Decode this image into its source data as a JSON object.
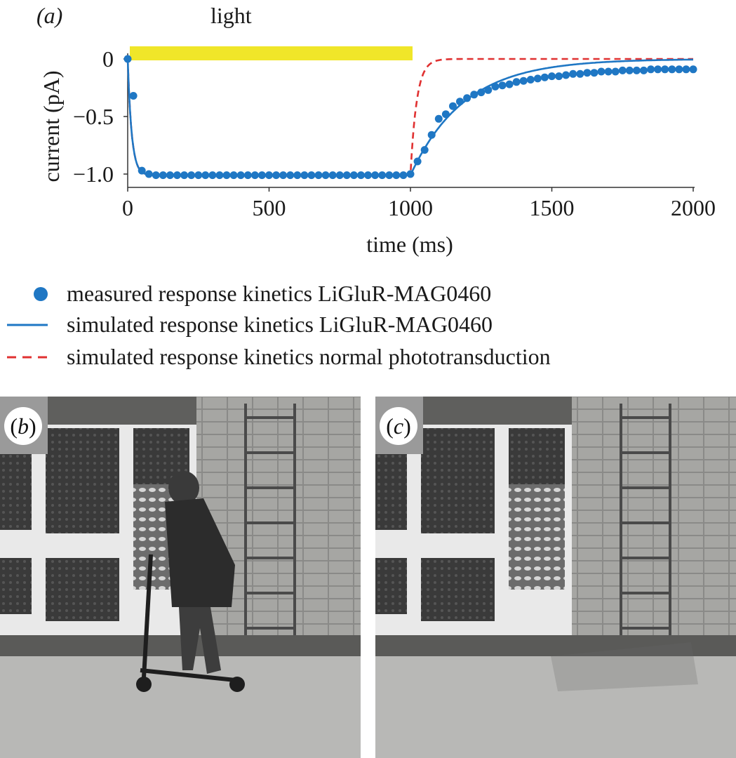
{
  "panel_a_label": "(a)",
  "light_label": "light",
  "chart_data": {
    "type": "line",
    "xlabel": "time (ms)",
    "ylabel": "current (pA)",
    "xlim": [
      0,
      2000
    ],
    "ylim": [
      -1.1,
      0.05
    ],
    "xticks": [
      0,
      500,
      1000,
      1500,
      2000
    ],
    "xtick_labels": [
      "0",
      "500",
      "1000",
      "1500",
      "2000"
    ],
    "yticks": [
      0,
      -0.5,
      -1.0
    ],
    "ytick_labels": [
      "0",
      "−0.5",
      "−1.0"
    ],
    "light_stimulus": [
      0,
      1000
    ],
    "grid": false,
    "legend_position": "below",
    "colors": {
      "measured": "#1f77c4",
      "simulated_liglur": "#1f77c4",
      "simulated_normal": "#e03131",
      "light_bar": "#f0e629"
    },
    "series": [
      {
        "name": "measured response kinetics LiGluR-MAG0460",
        "style": "dots",
        "x": [
          0,
          20,
          50,
          75,
          100,
          125,
          150,
          175,
          200,
          225,
          250,
          275,
          300,
          325,
          350,
          375,
          400,
          425,
          450,
          475,
          500,
          525,
          550,
          575,
          600,
          625,
          650,
          675,
          700,
          725,
          750,
          775,
          800,
          825,
          850,
          875,
          900,
          925,
          950,
          975,
          1000,
          1025,
          1050,
          1075,
          1100,
          1125,
          1150,
          1175,
          1200,
          1225,
          1250,
          1275,
          1300,
          1325,
          1350,
          1375,
          1400,
          1425,
          1450,
          1475,
          1500,
          1525,
          1550,
          1575,
          1600,
          1625,
          1650,
          1675,
          1700,
          1725,
          1750,
          1775,
          1800,
          1825,
          1850,
          1875,
          1900,
          1925,
          1950,
          1975,
          2000
        ],
        "values": [
          0,
          -0.32,
          -0.97,
          -1.0,
          -1.01,
          -1.01,
          -1.01,
          -1.01,
          -1.01,
          -1.01,
          -1.01,
          -1.01,
          -1.01,
          -1.01,
          -1.01,
          -1.01,
          -1.01,
          -1.01,
          -1.01,
          -1.01,
          -1.01,
          -1.01,
          -1.01,
          -1.01,
          -1.01,
          -1.01,
          -1.01,
          -1.01,
          -1.01,
          -1.01,
          -1.01,
          -1.01,
          -1.01,
          -1.01,
          -1.01,
          -1.01,
          -1.01,
          -1.01,
          -1.01,
          -1.01,
          -1.0,
          -0.89,
          -0.79,
          -0.66,
          -0.52,
          -0.48,
          -0.41,
          -0.37,
          -0.34,
          -0.31,
          -0.29,
          -0.27,
          -0.24,
          -0.23,
          -0.22,
          -0.2,
          -0.19,
          -0.18,
          -0.17,
          -0.16,
          -0.15,
          -0.15,
          -0.14,
          -0.13,
          -0.13,
          -0.12,
          -0.12,
          -0.11,
          -0.11,
          -0.11,
          -0.1,
          -0.1,
          -0.1,
          -0.1,
          -0.09,
          -0.09,
          -0.09,
          -0.09,
          -0.09,
          -0.09,
          -0.09
        ]
      },
      {
        "name": "simulated response kinetics LiGluR-MAG0460",
        "style": "solid",
        "model": "exp",
        "tau_on_ms": 14,
        "tau_off_ms": 190,
        "amplitude": -1.01
      },
      {
        "name": "simulated response kinetics normal phototransduction",
        "style": "dashed",
        "model": "exp",
        "tau_on_ms": 14,
        "tau_off_ms": 22,
        "amplitude": -1.01
      }
    ]
  },
  "legend": [
    {
      "label": "measured response kinetics LiGluR-MAG0460",
      "marker": "dot"
    },
    {
      "label": "simulated response kinetics LiGluR-MAG0460",
      "marker": "solid"
    },
    {
      "label": "simulated response kinetics normal phototransduction",
      "marker": "dashed"
    }
  ],
  "panel_b_label": "b",
  "panel_c_label": "c"
}
